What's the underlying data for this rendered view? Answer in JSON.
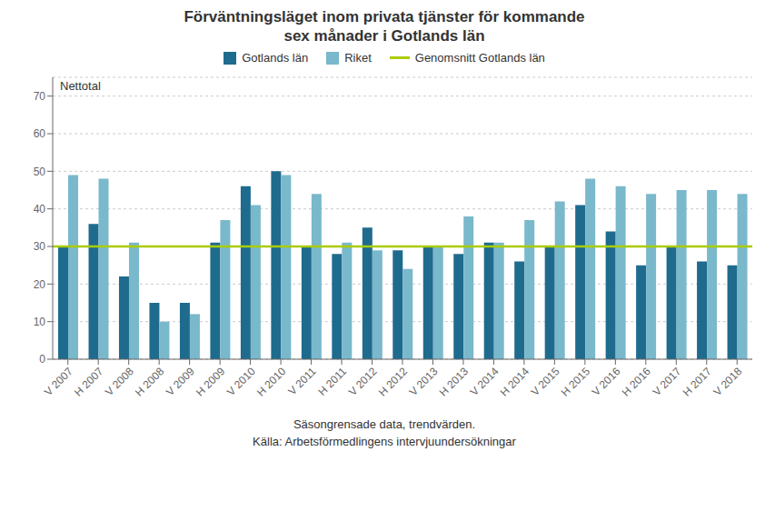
{
  "chart_data": {
    "type": "bar",
    "title": "Förväntningsläget inom privata tjänster för kommande\nsex månader i Gotlands län",
    "ylabel": "Nettotal",
    "xlabel": "Säsongrensade data, trendvärden.",
    "source": "Källa: Arbetsförmedlingens intervjuundersökningar",
    "categories": [
      "V 2007",
      "H 2007",
      "V 2008",
      "H 2008",
      "V 2009",
      "H 2009",
      "V 2010",
      "H 2010",
      "V 2011",
      "H 2011",
      "V 2012",
      "H 2012",
      "V 2013",
      "H 2013",
      "V 2014",
      "H 2014",
      "V 2015",
      "H 2015",
      "V 2016",
      "H 2016",
      "V 2017",
      "H 2017",
      "V 2018"
    ],
    "series": [
      {
        "name": "Gotlands län",
        "color": "#1F6B8E",
        "values": [
          30,
          36,
          22,
          15,
          15,
          31,
          46,
          50,
          30,
          28,
          35,
          29,
          30,
          28,
          31,
          26,
          30,
          41,
          34,
          25,
          30,
          26,
          25
        ]
      },
      {
        "name": "Riket",
        "color": "#7AB8CC",
        "values": [
          49,
          48,
          31,
          10,
          12,
          37,
          41,
          49,
          44,
          31,
          29,
          24,
          30,
          38,
          31,
          37,
          42,
          48,
          46,
          44,
          45,
          45,
          44
        ]
      }
    ],
    "average_line": {
      "name": "Genomsnitt Gotlands län",
      "value": 30,
      "color": "#AACC00"
    },
    "ylim": [
      0,
      75
    ],
    "yticks": [
      0,
      10,
      20,
      30,
      40,
      50,
      60,
      70
    ],
    "grid": true
  }
}
